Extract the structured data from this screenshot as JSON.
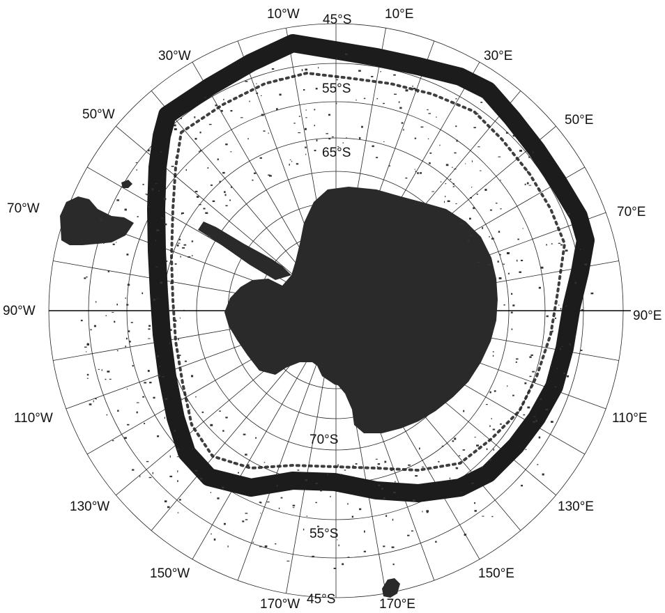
{
  "map": {
    "projection": "south-polar stereographic",
    "colors": {
      "land": "#2a2a2a",
      "ice_edge_band": "#1c1c1c",
      "grid": "#222222",
      "background": "#ffffff"
    },
    "meridian_labels": {
      "w10": "10°W",
      "e10": "10°E",
      "w30": "30°W",
      "e30": "30°E",
      "w50": "50°W",
      "e50": "50°E",
      "w70": "70°W",
      "e70": "70°E",
      "w90": "90°W",
      "e90": "90°E",
      "w110": "110°W",
      "e110": "110°E",
      "w130": "130°W",
      "e130": "130°E",
      "w150": "150°W",
      "e150": "150°E",
      "w170": "170°W",
      "e170": "170°E"
    },
    "latitude_labels": {
      "top_45": "45°S",
      "top_55": "55°S",
      "top_65": "65°S",
      "bottom_70": "70°S",
      "bottom_55": "55°S",
      "bottom_45": "45°S"
    }
  }
}
